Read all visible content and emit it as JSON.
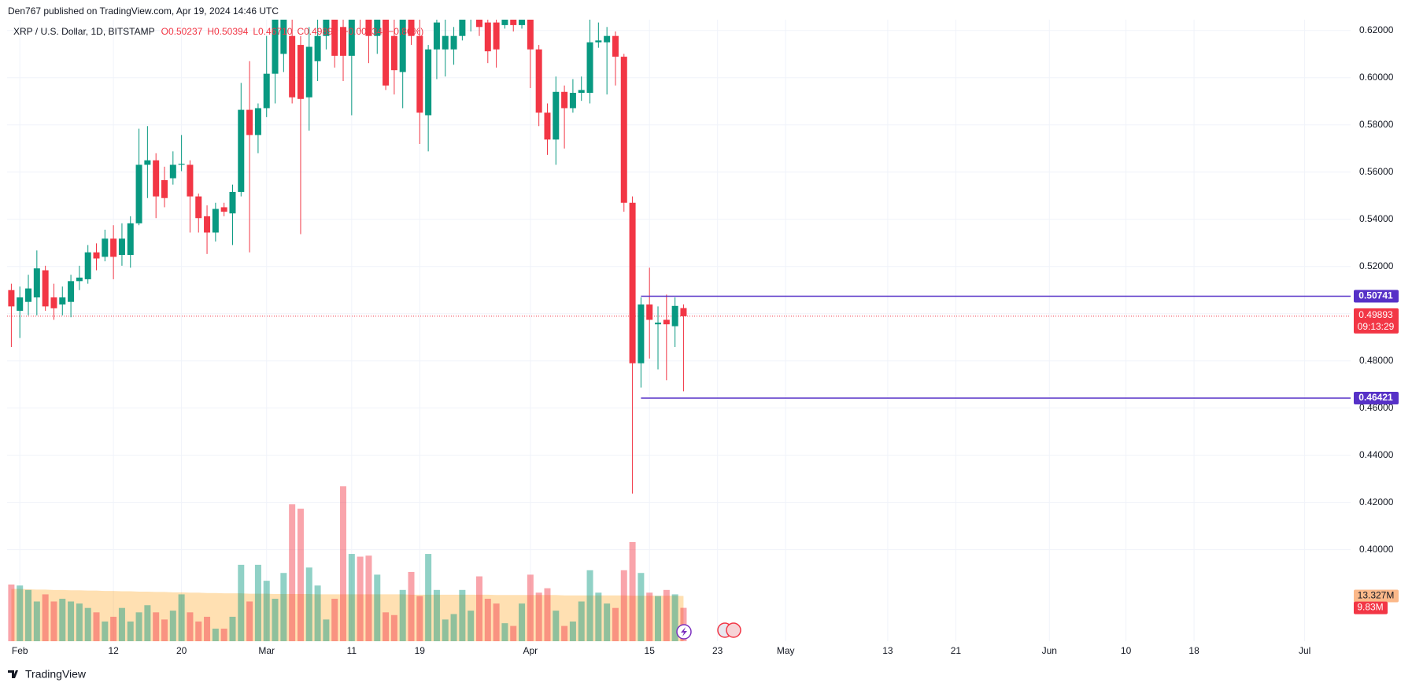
{
  "header": "Den767 published on TradingView.com, Apr 19, 2024 14:46 UTC",
  "footer": "TradingView",
  "chart_data": {
    "type": "candlestick",
    "title": "XRP / U.S. Dollar, 1D, BITSTAMP",
    "legend_values": [
      "O0.50237",
      "H0.50394",
      "L0.46710",
      "C0.49893",
      "−0.00434 (−0.86%)"
    ],
    "up_color": "#089981",
    "down_color": "#f23645",
    "x": [
      0,
      1,
      2,
      3,
      4,
      5,
      6,
      7,
      8,
      9,
      10,
      11,
      12,
      13,
      14,
      15,
      16,
      17,
      18,
      19,
      20,
      21,
      22,
      23,
      24,
      25,
      26,
      27,
      28,
      29,
      30,
      31,
      32,
      33,
      34,
      35,
      36,
      37,
      38,
      39,
      40,
      41,
      42,
      43,
      44,
      45,
      46,
      47,
      48,
      49,
      50,
      51,
      52,
      53,
      54,
      55,
      56,
      57,
      58,
      59,
      60,
      61,
      62,
      63,
      64,
      65,
      66,
      67,
      68,
      69,
      70,
      71,
      72,
      73,
      74,
      75,
      76,
      77,
      78,
      79
    ],
    "open": [
      0.51,
      0.5012,
      0.505,
      0.5069,
      0.5184,
      0.5069,
      0.5039,
      0.505,
      0.5138,
      0.5146,
      0.526,
      0.5241,
      0.5318,
      0.5249,
      0.5249,
      0.5383,
      0.5631,
      0.565,
      0.5566,
      0.5574,
      0.5631,
      0.5631,
      0.5497,
      0.5413,
      0.5344,
      0.5451,
      0.5425,
      0.5516,
      0.5864,
      0.5757,
      0.5871,
      0.6017,
      0.6101,
      0.6177,
      0.6139,
      0.5917,
      0.607,
      0.6177,
      0.6253,
      0.6215,
      0.6093,
      0.633,
      0.6292,
      0.6177,
      0.6253,
      0.6177,
      0.6024,
      0.6273,
      0.6177,
      0.5841,
      0.612,
      0.612,
      0.612,
      0.6177,
      0.6253,
      0.6273,
      0.6234,
      0.6234,
      0.6223,
      0.6246,
      0.6223,
      0.6253,
      0.612,
      0.5852,
      0.5738,
      0.594,
      0.5871,
      0.5936,
      0.5936,
      0.615,
      0.615,
      0.6177,
      0.6089,
      0.547,
      0.479,
      0.5039,
      0.4955,
      0.4974,
      0.4947,
      0.50237
    ],
    "high": [
      0.5127,
      0.5115,
      0.5165,
      0.5268,
      0.5203,
      0.5127,
      0.5115,
      0.5165,
      0.5203,
      0.5291,
      0.5298,
      0.5356,
      0.5375,
      0.5383,
      0.5413,
      0.5784,
      0.5795,
      0.568,
      0.5623,
      0.5688,
      0.5757,
      0.565,
      0.5509,
      0.5459,
      0.547,
      0.547,
      0.5547,
      0.5978,
      0.607,
      0.5891,
      0.6177,
      0.6292,
      0.633,
      0.6253,
      0.6177,
      0.6215,
      0.6273,
      0.6368,
      0.6292,
      0.6292,
      0.633,
      0.6368,
      0.633,
      0.6292,
      0.6292,
      0.6253,
      0.6311,
      0.6311,
      0.6253,
      0.6139,
      0.6292,
      0.6253,
      0.6215,
      0.6311,
      0.6311,
      0.6311,
      0.6273,
      0.6292,
      0.6292,
      0.6273,
      0.6273,
      0.6292,
      0.6139,
      0.5891,
      0.6005,
      0.5967,
      0.5994,
      0.6005,
      0.6253,
      0.6234,
      0.6215,
      0.6196,
      0.6101,
      0.5497,
      0.5069,
      0.5195,
      0.5031,
      0.5081,
      0.5069,
      0.50394
    ],
    "low": [
      0.4859,
      0.4897,
      0.4993,
      0.4993,
      0.5012,
      0.4974,
      0.4993,
      0.4985,
      0.51,
      0.5127,
      0.5184,
      0.5222,
      0.5146,
      0.5203,
      0.5195,
      0.5375,
      0.549,
      0.5405,
      0.5451,
      0.5547,
      0.5604,
      0.5344,
      0.5344,
      0.5253,
      0.5306,
      0.5413,
      0.5291,
      0.5497,
      0.526,
      0.568,
      0.5833,
      0.5891,
      0.6024,
      0.5891,
      0.5337,
      0.5776,
      0.5986,
      0.612,
      0.6043,
      0.5986,
      0.5841,
      0.6196,
      0.6062,
      0.6101,
      0.5948,
      0.5929,
      0.5871,
      0.6139,
      0.5719,
      0.5688,
      0.5994,
      0.6005,
      0.6055,
      0.6158,
      0.6196,
      0.6177,
      0.6062,
      0.6043,
      0.6208,
      0.6196,
      0.6208,
      0.5956,
      0.5795,
      0.5673,
      0.5631,
      0.57,
      0.5852,
      0.5902,
      0.5891,
      0.6127,
      0.5929,
      0.5967,
      0.5432,
      0.4237,
      0.4687,
      0.481,
      0.4764,
      0.4718,
      0.4859,
      0.4671
    ],
    "close": [
      0.5031,
      0.5069,
      0.5107,
      0.5192,
      0.5031,
      0.5023,
      0.5069,
      0.5138,
      0.5153,
      0.526,
      0.5234,
      0.5318,
      0.5241,
      0.5318,
      0.5383,
      0.5631,
      0.565,
      0.5497,
      0.549,
      0.5631,
      0.5635,
      0.5497,
      0.5405,
      0.5344,
      0.5444,
      0.5432,
      0.5516,
      0.5864,
      0.5757,
      0.5871,
      0.6017,
      0.6246,
      0.6292,
      0.5917,
      0.591,
      0.6131,
      0.6177,
      0.633,
      0.6093,
      0.6093,
      0.6292,
      0.6253,
      0.6177,
      0.6253,
      0.5967,
      0.6032,
      0.6273,
      0.6177,
      0.5852,
      0.612,
      0.6234,
      0.6177,
      0.6177,
      0.6273,
      0.6273,
      0.6215,
      0.6112,
      0.612,
      0.6246,
      0.6223,
      0.6253,
      0.612,
      0.5852,
      0.5738,
      0.594,
      0.5871,
      0.5936,
      0.5948,
      0.615,
      0.6158,
      0.6177,
      0.6089,
      0.547,
      0.479,
      0.5039,
      0.4974,
      0.4962,
      0.4955,
      0.5033,
      0.49893
    ],
    "volume": {
      "values": [
        16.7,
        16.4,
        15.1,
        11.7,
        13.8,
        11.7,
        12.5,
        11.7,
        11.1,
        9.8,
        8.5,
        5.8,
        7.2,
        9.8,
        5.8,
        8.5,
        10.6,
        8.5,
        6.4,
        9.0,
        13.8,
        8.5,
        5.8,
        7.2,
        3.7,
        3.7,
        7.2,
        22.5,
        11.7,
        22.5,
        17.8,
        12.5,
        20.1,
        40.3,
        39.0,
        21.7,
        16.4,
        6.4,
        12.5,
        45.6,
        25.7,
        24.9,
        25.2,
        19.6,
        8.5,
        7.7,
        15.1,
        20.4,
        13.3,
        25.7,
        15.1,
        6.4,
        8.0,
        15.1,
        9.0,
        19.1,
        12.5,
        11.1,
        5.3,
        4.5,
        11.1,
        19.6,
        14.3,
        15.6,
        9.0,
        4.5,
        5.8,
        11.7,
        20.9,
        14.3,
        11.1,
        9.8,
        20.9,
        29.2,
        20.1,
        14.3,
        13.3,
        15.1,
        13.8,
        9.83
      ],
      "last_label": "9.83M"
    },
    "volume_ma": {
      "color": "#ff9800",
      "values": [
        15.4,
        15.4,
        15.3,
        15.2,
        15.2,
        15.1,
        15.1,
        15.0,
        15.0,
        14.9,
        14.9,
        14.8,
        14.8,
        14.7,
        14.7,
        14.6,
        14.6,
        14.5,
        14.5,
        14.4,
        14.4,
        14.3,
        14.3,
        14.2,
        14.2,
        14.1,
        14.1,
        14.1,
        14.0,
        14.0,
        14.0,
        13.9,
        13.9,
        13.9,
        13.9,
        13.9,
        13.8,
        13.8,
        13.8,
        13.8,
        13.8,
        13.8,
        13.8,
        13.8,
        13.8,
        13.8,
        13.8,
        13.7,
        13.7,
        13.7,
        13.7,
        13.7,
        13.7,
        13.7,
        13.7,
        13.7,
        13.7,
        13.6,
        13.6,
        13.6,
        13.6,
        13.6,
        13.6,
        13.6,
        13.6,
        13.5,
        13.5,
        13.5,
        13.5,
        13.5,
        13.5,
        13.5,
        13.5,
        13.4,
        13.4,
        13.4,
        13.4,
        13.4,
        13.4,
        13.327
      ],
      "last_label": "13.327M"
    },
    "volume_ylim": [
      0,
      183
    ],
    "xlim": [
      -0.5,
      157.4
    ],
    "xticks": [
      {
        "value": 1,
        "label": "Feb"
      },
      12,
      20,
      {
        "value": 30,
        "label": "Mar"
      },
      {
        "value": 40,
        "label": "11"
      },
      {
        "value": 48,
        "label": "19"
      },
      {
        "value": 61,
        "label": "Apr"
      },
      {
        "value": 75,
        "label": "15"
      },
      {
        "value": 83,
        "label": "23"
      },
      {
        "value": 91,
        "label": "May"
      },
      {
        "value": 103,
        "label": "13"
      },
      {
        "value": 111,
        "label": "21"
      },
      {
        "value": 122,
        "label": "Jun"
      },
      {
        "value": 131,
        "label": "10"
      },
      {
        "value": 139,
        "label": "18"
      },
      {
        "value": 152,
        "label": "Jul"
      }
    ],
    "ylim": [
      0.3612,
      0.6246
    ],
    "yticks": [
      {
        "value": 0.4,
        "label": "0.40000"
      },
      {
        "value": 0.42,
        "label": "0.42000"
      },
      {
        "value": 0.44,
        "label": "0.44000"
      },
      {
        "value": 0.46,
        "label": "0.46000"
      },
      {
        "value": 0.48,
        "label": "0.48000"
      },
      {
        "value": 0.5,
        "label": "0.50000"
      },
      {
        "value": 0.52,
        "label": "0.52000"
      },
      {
        "value": 0.54,
        "label": "0.54000"
      },
      {
        "value": 0.56,
        "label": "0.56000"
      },
      {
        "value": 0.58,
        "label": "0.58000"
      },
      {
        "value": 0.6,
        "label": "0.60000"
      },
      {
        "value": 0.62,
        "label": "0.62000"
      }
    ],
    "grid": true,
    "hline_color": "#5631c7",
    "hlines": [
      {
        "value": 0.50741,
        "x_start": 74
      },
      {
        "value": 0.46421,
        "x_start": 74
      }
    ],
    "last_price": {
      "value": 0.49893,
      "countdown": "09:13:29"
    }
  }
}
